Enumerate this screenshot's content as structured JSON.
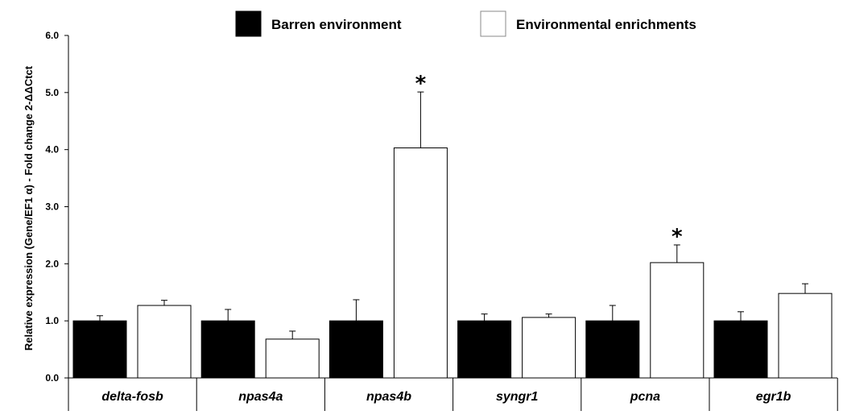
{
  "chart_data": {
    "type": "bar",
    "ylabel": "Relative expression (Gene/EF1 α) - Fold change  2-ΔΔCtct",
    "ylim": [
      0,
      6
    ],
    "yticks": [
      "0.0",
      "1.0",
      "2.0",
      "3.0",
      "4.0",
      "5.0",
      "6.0"
    ],
    "ytick_values": [
      0,
      1,
      2,
      3,
      4,
      5,
      6
    ],
    "categories": [
      "delta-fosb",
      "npas4a",
      "npas4b",
      "syngr1",
      "pcna",
      "egr1b"
    ],
    "legend_placement": "top",
    "grid": false,
    "series": [
      {
        "name": "Barren environment",
        "color": "#000000",
        "values": [
          1.0,
          1.0,
          1.0,
          1.0,
          1.0,
          1.0
        ],
        "errors": [
          0.09,
          0.2,
          0.37,
          0.12,
          0.27,
          0.16
        ]
      },
      {
        "name": "Environmental enrichments",
        "color": "#ffffff",
        "values": [
          1.27,
          0.68,
          4.03,
          1.06,
          2.02,
          1.48
        ],
        "errors": [
          0.09,
          0.14,
          0.98,
          0.06,
          0.31,
          0.17
        ]
      }
    ],
    "annotations": [
      {
        "category": "npas4b",
        "series": "Environmental enrichments",
        "text": "*"
      },
      {
        "category": "pcna",
        "series": "Environmental enrichments",
        "text": "*"
      }
    ]
  }
}
